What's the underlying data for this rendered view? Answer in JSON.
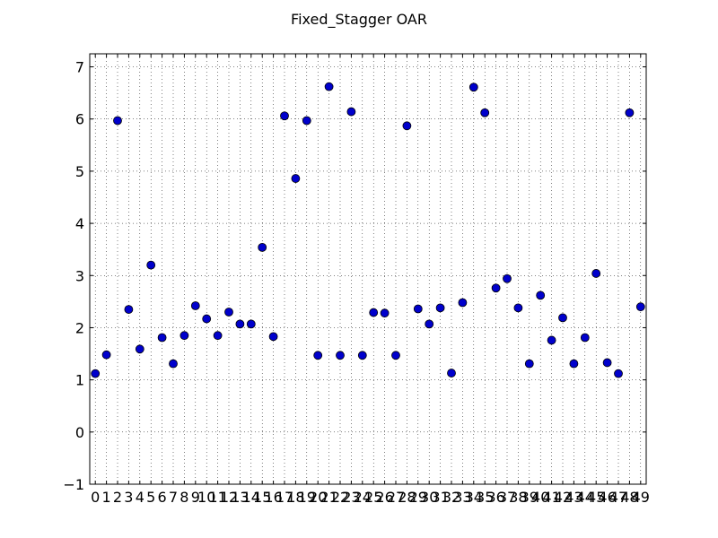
{
  "chart_data": {
    "type": "scatter",
    "title": "Fixed_Stagger OAR",
    "xlabel": "",
    "ylabel": "",
    "xlim": [
      -0.5,
      49.5
    ],
    "ylim": [
      -1,
      7.25
    ],
    "xticks": [
      0,
      1,
      2,
      3,
      4,
      5,
      6,
      7,
      8,
      9,
      10,
      11,
      12,
      13,
      14,
      15,
      16,
      17,
      18,
      19,
      20,
      21,
      22,
      23,
      24,
      25,
      26,
      27,
      28,
      29,
      30,
      31,
      32,
      33,
      34,
      35,
      36,
      37,
      38,
      39,
      40,
      41,
      42,
      43,
      44,
      45,
      46,
      47,
      48,
      49
    ],
    "yticks": [
      -1,
      0,
      1,
      2,
      3,
      4,
      5,
      6,
      7
    ],
    "ytick_labels": [
      "−1",
      "0",
      "1",
      "2",
      "3",
      "4",
      "5",
      "6",
      "7"
    ],
    "grid": true,
    "marker_color": "#0000cc",
    "x": [
      0,
      1,
      2,
      3,
      4,
      5,
      6,
      7,
      8,
      9,
      10,
      11,
      12,
      13,
      14,
      15,
      16,
      17,
      18,
      19,
      20,
      21,
      22,
      23,
      24,
      25,
      26,
      27,
      28,
      29,
      30,
      31,
      32,
      33,
      34,
      35,
      36,
      37,
      38,
      39,
      40,
      41,
      42,
      43,
      44,
      45,
      46,
      47,
      48,
      49
    ],
    "y": [
      1.12,
      1.48,
      5.97,
      2.35,
      1.59,
      3.2,
      1.81,
      1.31,
      1.85,
      2.42,
      2.17,
      1.85,
      2.3,
      2.07,
      2.07,
      3.54,
      1.83,
      6.06,
      4.86,
      5.97,
      1.47,
      6.62,
      1.47,
      6.14,
      1.47,
      2.29,
      2.28,
      1.47,
      5.87,
      2.36,
      2.07,
      2.38,
      1.13,
      2.48,
      6.61,
      6.12,
      2.76,
      2.94,
      2.38,
      1.31,
      2.62,
      1.76,
      2.19,
      1.31,
      1.81,
      3.04,
      1.33,
      1.12,
      6.12,
      2.4
    ]
  }
}
